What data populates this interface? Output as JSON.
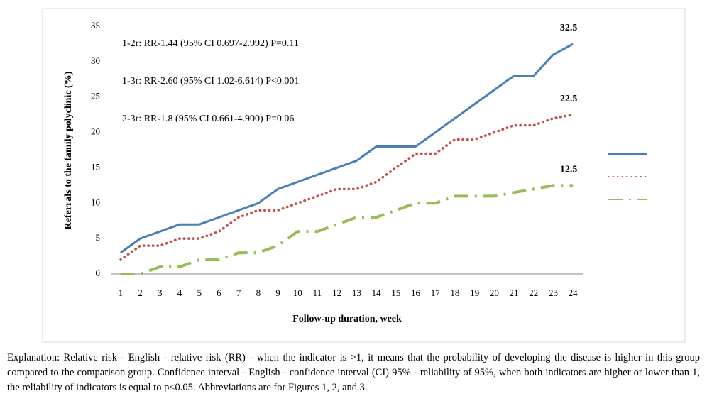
{
  "chart_data": {
    "type": "line",
    "y_label": "Referrals to the family polyclinic (%)",
    "x_label": "Follow-up duration, week",
    "annotations": [
      "1-2r: RR-1.44 (95% CI 0.697-2.992) P=0.11",
      "1-3r: RR-2.60 (95% CI 1.02-6.614) P<0.001",
      "2-3r: RR-1.8 (95% CI 0.661-4.900) P=0.06"
    ],
    "categories": [
      "1",
      "2",
      "3",
      "4",
      "5",
      "6",
      "7",
      "8",
      "9",
      "10",
      "11",
      "12",
      "13",
      "14",
      "15",
      "16",
      "17",
      "18",
      "19",
      "20",
      "21",
      "22",
      "23",
      "24"
    ],
    "series": [
      {
        "color": "#4a7ebb",
        "style": "solid",
        "values": [
          3,
          5,
          6,
          7,
          7,
          8,
          9,
          10,
          12,
          13,
          14,
          15,
          16,
          18,
          18,
          18,
          20,
          22,
          24,
          26,
          28,
          28,
          31,
          32.5
        ]
      },
      {
        "color": "#c0504d",
        "style": "dotted",
        "values": [
          2,
          4,
          4,
          5,
          5,
          6,
          8,
          9,
          9,
          10,
          11,
          12,
          12,
          13,
          15,
          17,
          17,
          19,
          19,
          20,
          21,
          21,
          22,
          22.5
        ]
      },
      {
        "color": "#9bbb59",
        "style": "dashdot",
        "values": [
          0,
          0,
          1,
          1,
          2,
          2,
          3,
          3,
          4,
          6,
          6,
          7,
          8,
          8,
          9,
          10,
          10,
          11,
          11,
          11,
          11.5,
          12,
          12.5,
          12.5
        ]
      }
    ],
    "ylim": [
      0,
      35
    ],
    "yticks": [
      0,
      5,
      10,
      15,
      20,
      25,
      30,
      35
    ],
    "grid": false,
    "legend": "right"
  },
  "footnote": "Explanation: Relative risk - English - relative risk (RR) - when the indicator is >1, it means that the probability of developing the disease is higher in this group compared to the comparison group. Confidence interval - English - confidence interval (CI) 95% - reliability of 95%, when both indicators are higher or lower than 1, the reliability of indicators is equal to p<0.05. Abbreviations are for Figures 1, 2, and 3."
}
